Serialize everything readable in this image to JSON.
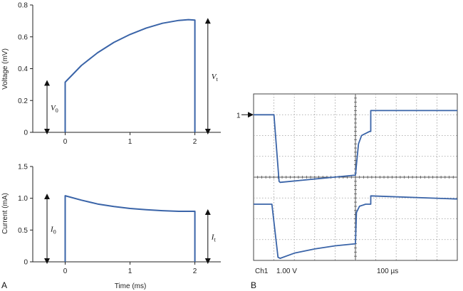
{
  "colors": {
    "trace": "#3a64a8",
    "axis": "#222222",
    "grid": "#9a9a9a",
    "screen_bg": "#ffffff"
  },
  "panels": {
    "a_label": "A",
    "b_label": "B"
  },
  "chart_data": [
    {
      "id": "voltage",
      "type": "line",
      "ylabel": "Voltage (mV)",
      "xlabel": "",
      "xlim": [
        -0.5,
        2.4
      ],
      "ylim": [
        0,
        0.8
      ],
      "xticks": [
        0,
        1,
        2
      ],
      "xtick_labels": [
        "0",
        "1",
        "2"
      ],
      "yticks": [
        0,
        0.2,
        0.4,
        0.6,
        0.8
      ],
      "ytick_labels": [
        "0",
        "0.2",
        "0.4",
        "0.6",
        "0.8"
      ],
      "series": [
        {
          "x": [
            0,
            0,
            0.25,
            0.5,
            0.75,
            1.0,
            1.25,
            1.5,
            1.75,
            1.9,
            2.0,
            2.0
          ],
          "y": [
            0,
            0.315,
            0.42,
            0.5,
            0.565,
            0.615,
            0.655,
            0.685,
            0.703,
            0.708,
            0.705,
            0
          ]
        }
      ],
      "annotations": [
        {
          "label": "V",
          "sub": "0",
          "x": -0.28,
          "y0": 0,
          "y1": 0.315
        },
        {
          "label": "V",
          "sub": "t",
          "x": 2.2,
          "y0": 0,
          "y1": 0.705
        }
      ]
    },
    {
      "id": "current",
      "type": "line",
      "ylabel": "Current (mA)",
      "xlabel": "Time (ms)",
      "xlim": [
        -0.5,
        2.4
      ],
      "ylim": [
        0,
        1.5
      ],
      "xticks": [
        0,
        1,
        2
      ],
      "xtick_labels": [
        "0",
        "1",
        "2"
      ],
      "yticks": [
        0,
        0.5,
        1.0,
        1.5
      ],
      "ytick_labels": [
        "0",
        "0.5",
        "1.0",
        "1.5"
      ],
      "series": [
        {
          "x": [
            0,
            0,
            0.25,
            0.5,
            0.75,
            1.0,
            1.25,
            1.5,
            1.75,
            2.0,
            2.0
          ],
          "y": [
            0,
            1.04,
            0.97,
            0.91,
            0.87,
            0.84,
            0.82,
            0.805,
            0.795,
            0.795,
            0
          ]
        }
      ],
      "annotations": [
        {
          "label": "I",
          "sub": "0",
          "x": -0.28,
          "y0": 0,
          "y1": 1.04
        },
        {
          "label": "I",
          "sub": "t",
          "x": 2.2,
          "y0": 0,
          "y1": 0.795
        }
      ]
    },
    {
      "id": "oscilloscope",
      "type": "line",
      "grid": true,
      "divisions": [
        10,
        8
      ],
      "xlim": [
        0,
        10
      ],
      "ylim": [
        0,
        8
      ],
      "marker_label": "1",
      "channel_label": "Ch1",
      "volts_label": "1.00 V",
      "time_label": "100 µs",
      "series": [
        {
          "name": "",
          "x": [
            0,
            1.0,
            1.0,
            1.25,
            1.3,
            5.0,
            5.05,
            5.15,
            5.3,
            5.6,
            5.7,
            5.75,
            5.75,
            10
          ],
          "y": [
            7.0,
            7.0,
            7.0,
            3.8,
            3.75,
            4.1,
            4.6,
            5.6,
            6.0,
            6.15,
            6.2,
            6.2,
            7.2,
            7.2
          ]
        },
        {
          "name": "",
          "x": [
            0,
            0.9,
            0.9,
            1.2,
            1.3,
            2.0,
            3.0,
            4.0,
            5.0,
            5.05,
            5.2,
            5.5,
            5.75,
            5.75,
            10
          ],
          "y": [
            2.7,
            2.7,
            2.7,
            0.15,
            0.1,
            0.35,
            0.55,
            0.7,
            0.8,
            2.3,
            2.6,
            2.7,
            2.7,
            3.1,
            2.95
          ]
        }
      ]
    }
  ]
}
